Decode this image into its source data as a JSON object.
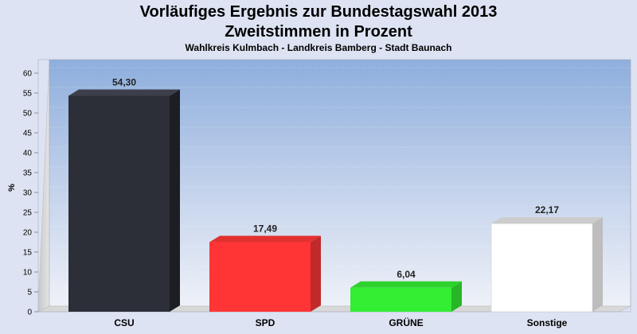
{
  "chart_data": {
    "type": "bar",
    "title": "Vorläufiges Ergebnis zur Bundestagswahl 2013",
    "title2": "Zweitstimmen in Prozent",
    "subtitle": "Wahlkreis Kulmbach - Landkreis Bamberg - Stadt Baunach",
    "ylabel": "%",
    "xlabel": "",
    "ylim": [
      0,
      60
    ],
    "yticks": [
      0,
      5,
      10,
      15,
      20,
      25,
      30,
      35,
      40,
      45,
      50,
      55,
      60
    ],
    "grid": true,
    "categories": [
      "CSU",
      "SPD",
      "GRÜNE",
      "Sonstige"
    ],
    "values": [
      54.3,
      17.49,
      6.04,
      22.17
    ],
    "value_labels": [
      "54,30",
      "17,49",
      "6,04",
      "22,17"
    ],
    "colors": [
      "#2c2f38",
      "#ff3535",
      "#33ee33",
      "#ffffff"
    ]
  }
}
